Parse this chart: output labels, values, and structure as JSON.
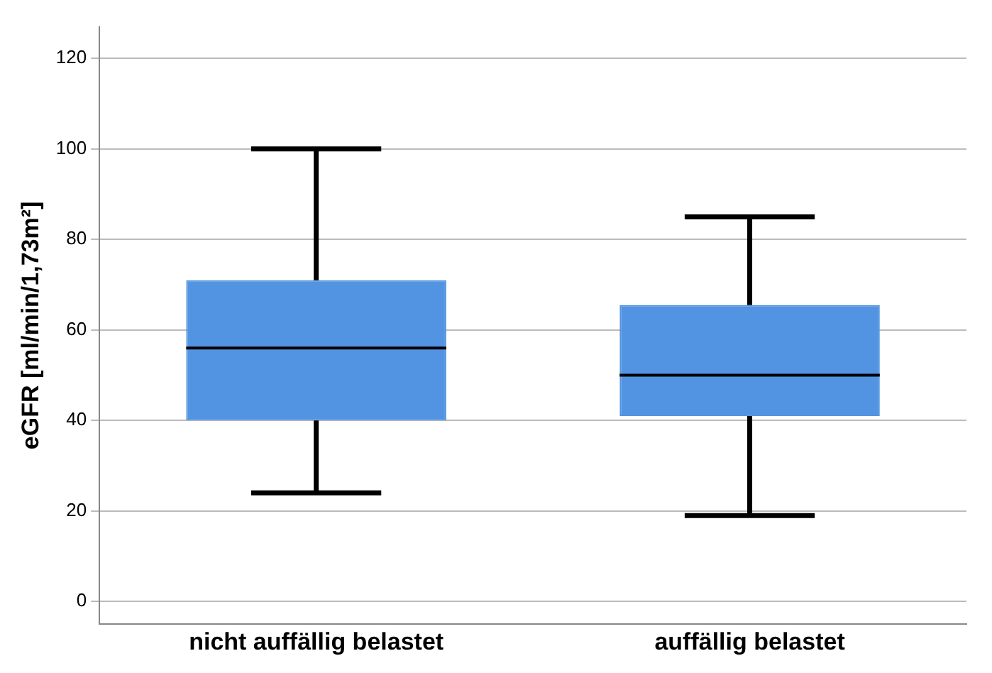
{
  "chart_data": {
    "type": "box",
    "ylabel": "eGFR [ml/min/1,73m²]",
    "categories": [
      "nicht auffällig belastet",
      "auffällig belastet"
    ],
    "color": "#5294e2",
    "boxes": [
      {
        "low": 24,
        "q1": 40,
        "median": 56,
        "q3": 71,
        "high": 100
      },
      {
        "low": 19,
        "q1": 41,
        "median": 50,
        "q3": 65.5,
        "high": 85
      }
    ],
    "ylim": [
      -5,
      127
    ],
    "yticks": [
      0,
      20,
      40,
      60,
      80,
      100,
      120
    ],
    "grid": "y"
  }
}
